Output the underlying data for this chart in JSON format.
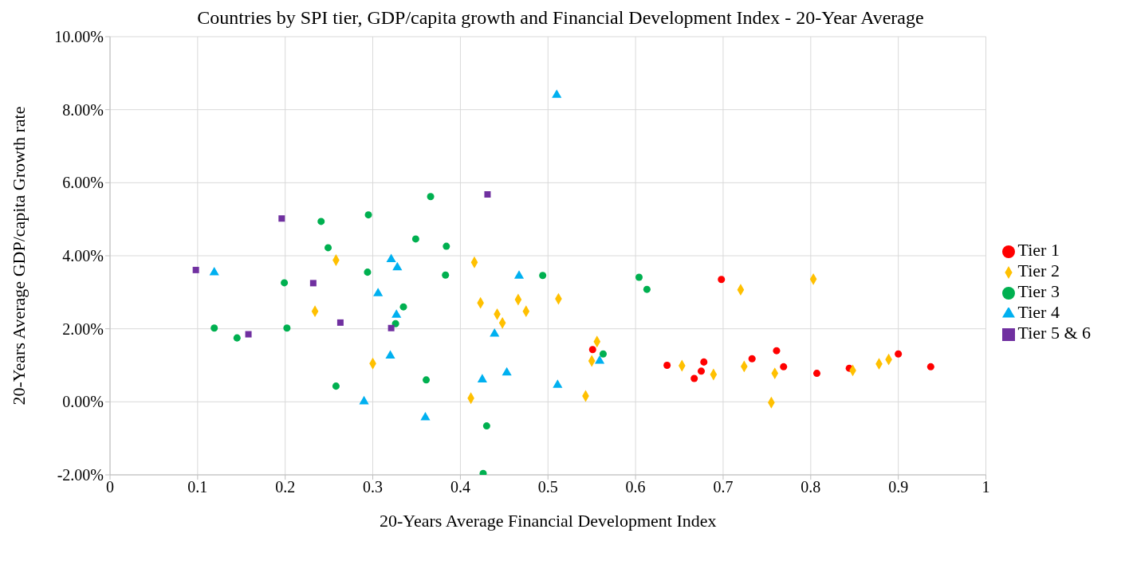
{
  "chart_data": {
    "type": "scatter",
    "title": "Countries by SPI tier, GDP/capita growth and Financial Development Index  - 20-Year Average",
    "xlabel": "20-Years Average Financial Development Index",
    "ylabel": "20-Years Average GDP/capita Growth rate",
    "xlim": [
      0,
      1
    ],
    "xticks": [
      0,
      0.1,
      0.2,
      0.3,
      0.4,
      0.5,
      0.6,
      0.7,
      0.8,
      0.9,
      1
    ],
    "ylim": [
      -2,
      10
    ],
    "yticks": [
      {
        "value": -2,
        "label": "-2.00%"
      },
      {
        "value": 0,
        "label": "0.00%"
      },
      {
        "value": 2,
        "label": "2.00%"
      },
      {
        "value": 4,
        "label": "4.00%"
      },
      {
        "value": 6,
        "label": "6.00%"
      },
      {
        "value": 8,
        "label": "8.00%"
      },
      {
        "value": 10,
        "label": "10.00%"
      }
    ],
    "grid": true,
    "legend": "right",
    "series": [
      {
        "name": "Tier 1",
        "color": "#ff0000",
        "marker": "circle",
        "x": [
          0.551,
          0.636,
          0.667,
          0.675,
          0.678,
          0.698,
          0.733,
          0.761,
          0.769,
          0.807,
          0.844,
          0.9,
          0.937
        ],
        "values": [
          1.43,
          1.0,
          0.64,
          0.84,
          1.09,
          3.35,
          1.18,
          1.4,
          0.96,
          0.78,
          0.92,
          1.31,
          0.96
        ]
      },
      {
        "name": "Tier 2",
        "color": "#ffc000",
        "marker": "diamond",
        "x": [
          0.234,
          0.258,
          0.3,
          0.412,
          0.416,
          0.423,
          0.442,
          0.448,
          0.466,
          0.475,
          0.512,
          0.543,
          0.55,
          0.556,
          0.653,
          0.689,
          0.72,
          0.724,
          0.755,
          0.759,
          0.803,
          0.848,
          0.878,
          0.889
        ],
        "values": [
          2.48,
          3.88,
          1.05,
          0.1,
          3.82,
          2.71,
          2.4,
          2.16,
          2.8,
          2.48,
          2.82,
          0.16,
          1.12,
          1.65,
          0.99,
          0.75,
          3.07,
          0.97,
          -0.02,
          0.78,
          3.36,
          0.86,
          1.04,
          1.16
        ]
      },
      {
        "name": "Tier 3",
        "color": "#00b050",
        "marker": "circle",
        "x": [
          0.119,
          0.145,
          0.199,
          0.202,
          0.241,
          0.249,
          0.258,
          0.294,
          0.295,
          0.326,
          0.335,
          0.349,
          0.361,
          0.366,
          0.383,
          0.384,
          0.426,
          0.43,
          0.494,
          0.563,
          0.604,
          0.613
        ],
        "values": [
          2.02,
          1.75,
          3.26,
          2.02,
          4.94,
          4.22,
          0.43,
          3.55,
          5.12,
          2.14,
          2.6,
          4.46,
          0.6,
          5.62,
          3.47,
          4.26,
          -1.96,
          -0.66,
          3.46,
          1.31,
          3.41,
          3.08
        ]
      },
      {
        "name": "Tier 4",
        "color": "#00b0f0",
        "marker": "triangle",
        "x": [
          0.119,
          0.29,
          0.306,
          0.32,
          0.321,
          0.327,
          0.328,
          0.36,
          0.425,
          0.439,
          0.453,
          0.467,
          0.51,
          0.511,
          0.559
        ],
        "values": [
          3.54,
          0.01,
          2.97,
          1.26,
          3.9,
          2.38,
          3.68,
          -0.43,
          0.61,
          1.86,
          0.8,
          3.45,
          8.4,
          0.46,
          1.12
        ]
      },
      {
        "name": "Tier 5 & 6",
        "color": "#7030a0",
        "marker": "square",
        "x": [
          0.098,
          0.158,
          0.196,
          0.232,
          0.263,
          0.321,
          0.431
        ],
        "values": [
          3.61,
          1.85,
          5.02,
          3.25,
          2.17,
          2.02,
          5.68
        ]
      }
    ]
  }
}
